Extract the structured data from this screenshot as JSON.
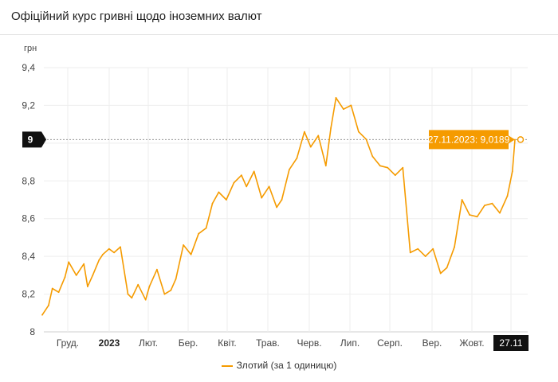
{
  "header": {
    "title": "Офіційний курс гривні щодо іноземних валют"
  },
  "chart_data": {
    "type": "line",
    "ylabel": "грн",
    "ylim": [
      8,
      9.4
    ],
    "yticks": [
      "8",
      "8,2",
      "8,4",
      "8,6",
      "8,8",
      "9",
      "9,2",
      "9,4"
    ],
    "x_ticks": [
      "Груд.",
      "2023",
      "Лют.",
      "Бер.",
      "Квіт.",
      "Трав.",
      "Черв.",
      "Лип.",
      "Серп.",
      "Вер.",
      "Жовт.",
      "27.11"
    ],
    "series": [
      {
        "name": "Злотий (за 1 одиницю)",
        "color": "#f59b00",
        "x": [
          "2022-11-17",
          "2022-11-22",
          "2022-11-25",
          "2022-11-30",
          "2022-12-05",
          "2022-12-08",
          "2022-12-14",
          "2022-12-20",
          "2022-12-23",
          "2022-12-27",
          "2023-01-01",
          "2023-01-04",
          "2023-01-09",
          "2023-01-13",
          "2023-01-18",
          "2023-01-24",
          "2023-01-27",
          "2023-02-01",
          "2023-02-07",
          "2023-02-10",
          "2023-02-16",
          "2023-02-22",
          "2023-02-27",
          "2023-03-03",
          "2023-03-09",
          "2023-03-15",
          "2023-03-21",
          "2023-03-27",
          "2023-04-01",
          "2023-04-06",
          "2023-04-12",
          "2023-04-18",
          "2023-04-24",
          "2023-04-28",
          "2023-05-04",
          "2023-05-10",
          "2023-05-16",
          "2023-05-22",
          "2023-05-26",
          "2023-06-01",
          "2023-06-07",
          "2023-06-13",
          "2023-06-18",
          "2023-06-24",
          "2023-06-30",
          "2023-07-04",
          "2023-07-08",
          "2023-07-14",
          "2023-07-20",
          "2023-07-26",
          "2023-08-01",
          "2023-08-06",
          "2023-08-12",
          "2023-08-18",
          "2023-08-24",
          "2023-08-30",
          "2023-09-05",
          "2023-09-11",
          "2023-09-17",
          "2023-09-23",
          "2023-09-29",
          "2023-10-04",
          "2023-10-10",
          "2023-10-16",
          "2023-10-22",
          "2023-10-28",
          "2023-11-03",
          "2023-11-09",
          "2023-11-15",
          "2023-11-21",
          "2023-11-25",
          "2023-11-27"
        ],
        "values": [
          8.09,
          8.14,
          8.23,
          8.21,
          8.29,
          8.37,
          8.3,
          8.36,
          8.24,
          8.3,
          8.38,
          8.41,
          8.44,
          8.42,
          8.45,
          8.2,
          8.18,
          8.25,
          8.17,
          8.24,
          8.33,
          8.2,
          8.22,
          8.28,
          8.46,
          8.41,
          8.52,
          8.55,
          8.68,
          8.74,
          8.7,
          8.79,
          8.83,
          8.77,
          8.85,
          8.71,
          8.77,
          8.66,
          8.7,
          8.86,
          8.92,
          9.06,
          8.98,
          9.04,
          8.88,
          9.08,
          9.24,
          9.18,
          9.2,
          9.06,
          9.02,
          8.93,
          8.88,
          8.87,
          8.83,
          8.87,
          8.42,
          8.44,
          8.4,
          8.44,
          8.31,
          8.34,
          8.45,
          8.7,
          8.62,
          8.61,
          8.67,
          8.68,
          8.63,
          8.72,
          8.85,
          9.0189
        ]
      }
    ],
    "tooltip": "27.11.2023: 9,0189",
    "crosshair_label": "9",
    "legend": "Злотий (за 1 одиницю)",
    "grid": true
  }
}
